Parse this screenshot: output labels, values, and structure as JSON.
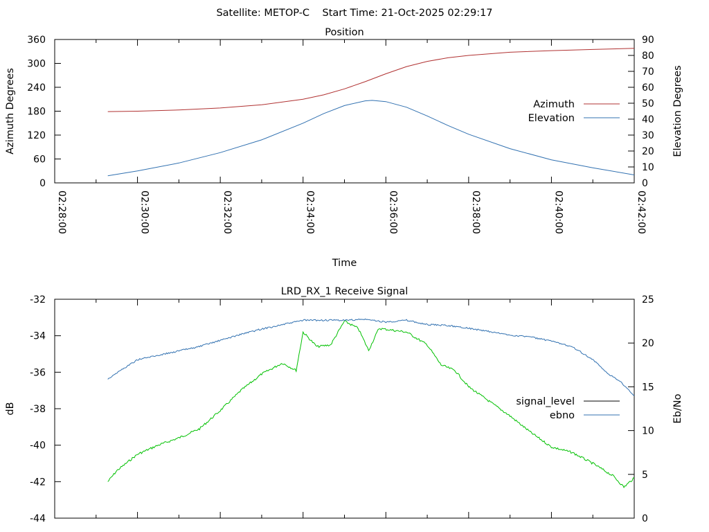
{
  "figure_title": "Satellite: METOP-C    Start Time: 21-Oct-2025 02:29:17",
  "chart_data": [
    {
      "type": "line",
      "title": "Position",
      "xlabel": "Time",
      "ylabel": "Azimuth Degrees",
      "y2label": "Elevation Degrees",
      "xlim": [
        "02:28:00",
        "02:42:00"
      ],
      "x_ticks": [
        "02:28:00",
        "02:30:00",
        "02:32:00",
        "02:34:00",
        "02:36:00",
        "02:38:00",
        "02:40:00",
        "02:42:00"
      ],
      "ylim": [
        0,
        360
      ],
      "y_ticks": [
        0,
        60,
        120,
        180,
        240,
        300,
        360
      ],
      "y2lim": [
        0,
        90
      ],
      "y2_ticks": [
        0,
        10,
        20,
        30,
        40,
        50,
        60,
        70,
        80,
        90
      ],
      "legend_position": "right",
      "grid": false,
      "series": [
        {
          "name": "Azimuth",
          "axis": "left",
          "color": "#b03030",
          "x": [
            "02:29:17",
            "02:30:00",
            "02:31:00",
            "02:32:00",
            "02:33:00",
            "02:34:00",
            "02:34:30",
            "02:35:00",
            "02:35:30",
            "02:36:00",
            "02:36:30",
            "02:37:00",
            "02:37:30",
            "02:38:00",
            "02:39:00",
            "02:40:00",
            "02:41:00",
            "02:42:00"
          ],
          "values": [
            179,
            180,
            183,
            188,
            196,
            210,
            221,
            236,
            254,
            274,
            292,
            305,
            314,
            320,
            328,
            332,
            335,
            338
          ]
        },
        {
          "name": "Elevation",
          "axis": "right",
          "color": "#3070b0",
          "x": [
            "02:29:17",
            "02:30:00",
            "02:31:00",
            "02:32:00",
            "02:33:00",
            "02:34:00",
            "02:34:30",
            "02:35:00",
            "02:35:30",
            "02:35:40",
            "02:36:00",
            "02:36:30",
            "02:37:00",
            "02:37:30",
            "02:38:00",
            "02:39:00",
            "02:40:00",
            "02:41:00",
            "02:42:00"
          ],
          "values": [
            4.5,
            7.5,
            12.5,
            19,
            27,
            37.5,
            43.5,
            48.5,
            51.5,
            51.8,
            51,
            47.5,
            42,
            36,
            30.5,
            21.5,
            14.5,
            9.5,
            5
          ]
        }
      ]
    },
    {
      "type": "line",
      "title": "LRD_RX_1 Receive Signal",
      "xlabel": "",
      "ylabel": "dB",
      "y2label": "Eb/No",
      "xlim": [
        "02:28:00",
        "02:42:00"
      ],
      "ylim": [
        -44,
        -32
      ],
      "y_ticks": [
        -44,
        -42,
        -40,
        -38,
        -36,
        -34,
        -32
      ],
      "y2lim": [
        0,
        25
      ],
      "y2_ticks": [
        0,
        5,
        10,
        15,
        20,
        25
      ],
      "legend_position": "right",
      "grid": false,
      "series": [
        {
          "name": "signal_level",
          "axis": "left",
          "color": "#00c000",
          "x": [
            "02:29:17",
            "02:29:30",
            "02:30:00",
            "02:30:30",
            "02:31:00",
            "02:31:30",
            "02:32:00",
            "02:32:30",
            "02:33:00",
            "02:33:30",
            "02:33:50",
            "02:34:00",
            "02:34:20",
            "02:34:40",
            "02:35:00",
            "02:35:20",
            "02:35:35",
            "02:35:50",
            "02:36:10",
            "02:36:30",
            "02:37:00",
            "02:37:20",
            "02:37:40",
            "02:38:00",
            "02:38:30",
            "02:39:00",
            "02:39:30",
            "02:40:00",
            "02:40:30",
            "02:41:00",
            "02:41:30",
            "02:41:45",
            "02:42:00"
          ],
          "values": [
            -42.0,
            -41.4,
            -40.5,
            -40.0,
            -39.6,
            -39.1,
            -38.1,
            -37.0,
            -36.1,
            -35.5,
            -35.9,
            -33.8,
            -34.6,
            -34.5,
            -33.2,
            -33.6,
            -34.8,
            -33.6,
            -33.7,
            -33.8,
            -34.5,
            -35.6,
            -35.9,
            -36.8,
            -37.6,
            -38.4,
            -39.3,
            -40.1,
            -40.4,
            -41.0,
            -41.7,
            -42.3,
            -41.8
          ]
        },
        {
          "name": "ebno",
          "axis": "right",
          "color": "#3070b0",
          "x": [
            "02:29:17",
            "02:29:30",
            "02:30:00",
            "02:30:30",
            "02:31:00",
            "02:31:30",
            "02:32:00",
            "02:32:30",
            "02:33:00",
            "02:33:30",
            "02:34:00",
            "02:34:30",
            "02:35:00",
            "02:35:30",
            "02:36:00",
            "02:36:30",
            "02:37:00",
            "02:37:30",
            "02:38:00",
            "02:38:30",
            "02:39:00",
            "02:39:30",
            "02:40:00",
            "02:40:30",
            "02:41:00",
            "02:41:20",
            "02:41:40",
            "02:42:00"
          ],
          "values": [
            15.9,
            16.6,
            18.1,
            18.6,
            19.1,
            19.6,
            20.3,
            21.0,
            21.6,
            22.1,
            22.6,
            22.6,
            22.6,
            22.7,
            22.4,
            22.6,
            22.1,
            22.0,
            21.7,
            21.3,
            20.9,
            20.7,
            20.2,
            19.6,
            18.1,
            16.6,
            15.6,
            14.0
          ]
        }
      ]
    }
  ]
}
